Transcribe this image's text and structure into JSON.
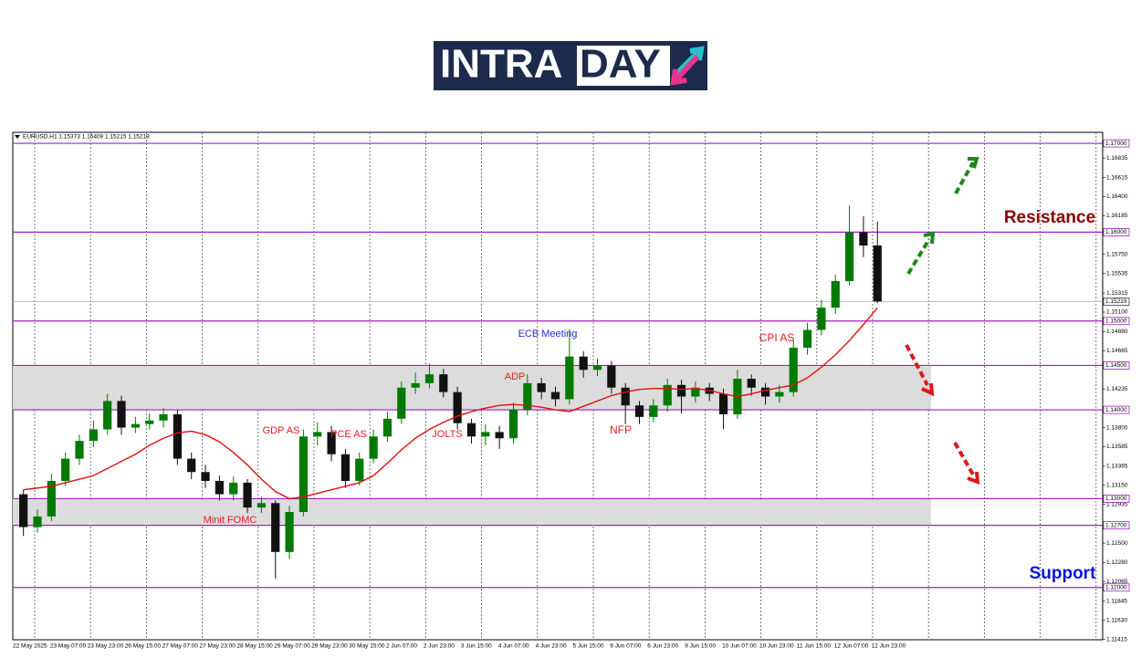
{
  "logo": {
    "part1": "INTRA",
    "part2": "DAY"
  },
  "chart_data": {
    "type": "candlestick",
    "title": "EURUSD,H1  1.15373 1.15409 1.15215 1.15219",
    "ylim": [
      1.11412,
      1.17124
    ],
    "yticks": [
      {
        "value": 1.16835,
        "label": "1.16835"
      },
      {
        "value": 1.16615,
        "label": "1.16615"
      },
      {
        "value": 1.164,
        "label": "1.16400"
      },
      {
        "value": 1.16185,
        "label": "1.16185"
      },
      {
        "value": 1.1575,
        "label": "1.15750"
      },
      {
        "value": 1.15535,
        "label": "1.15535"
      },
      {
        "value": 1.15315,
        "label": "1.15315"
      },
      {
        "value": 1.151,
        "label": "1.15100"
      },
      {
        "value": 1.1488,
        "label": "1.14880"
      },
      {
        "value": 1.14665,
        "label": "1.14665"
      },
      {
        "value": 1.14235,
        "label": "1.14235"
      },
      {
        "value": 1.138,
        "label": "1.13800"
      },
      {
        "value": 1.13585,
        "label": "1.13585"
      },
      {
        "value": 1.13365,
        "label": "1.13365"
      },
      {
        "value": 1.1315,
        "label": "1.13150"
      },
      {
        "value": 1.12935,
        "label": "1.12935"
      },
      {
        "value": 1.125,
        "label": "1.12500"
      },
      {
        "value": 1.1228,
        "label": "1.12280"
      },
      {
        "value": 1.12065,
        "label": "1.12065"
      },
      {
        "value": 1.11845,
        "label": "1.11845"
      },
      {
        "value": 1.1163,
        "label": "1.11630"
      },
      {
        "value": 1.11415,
        "label": "1.11415"
      }
    ],
    "levels": [
      {
        "value": 1.17,
        "label": "1.17000"
      },
      {
        "value": 1.16,
        "label": "1.16000"
      },
      {
        "value": 1.15,
        "label": "1.15000"
      },
      {
        "value": 1.145,
        "label": "1.14500"
      },
      {
        "value": 1.14,
        "label": "1.14000"
      },
      {
        "value": 1.13,
        "label": "1.13000"
      },
      {
        "value": 1.127,
        "label": "1.12700"
      },
      {
        "value": 1.12,
        "label": "1.12000"
      }
    ],
    "level_color": "#a020c0",
    "zones": [
      [
        1.14,
        1.145
      ],
      [
        1.127,
        1.13
      ]
    ],
    "zone_color": "#dcdcdc",
    "last_price": {
      "value": 1.15219,
      "label": "1.15219"
    },
    "xlabels": [
      "22 May 2025",
      "23 May 07:00",
      "23 May 23:00",
      "26 May 15:00",
      "27 May 07:00",
      "27 May 23:00",
      "28 May 15:00",
      "29 May 07:00",
      "29 May 23:00",
      "30 May 15:00",
      "2 Jun 07:00",
      "2 Jun 23:00",
      "3 Jun 15:00",
      "4 Jun 07:00",
      "4 Jun 23:00",
      "5 Jun 15:00",
      "6 Jun 07:00",
      "6 Jun 23:00",
      "9 Jun 15:00",
      "10 Jun 07:00",
      "10 Jun 23:00",
      "11 Jun 15:00",
      "12 Jun 07:00",
      "12 Jun 23:00"
    ],
    "up_color": "#007a00",
    "down_color": "#111111",
    "open": [
      1.1305,
      1.1268,
      1.128,
      1.132,
      1.1345,
      1.1365,
      1.1378,
      1.141,
      1.138,
      1.1384,
      1.1388,
      1.1395,
      1.1345,
      1.133,
      1.132,
      1.1305,
      1.1318,
      1.129,
      1.1295,
      1.124,
      1.1285,
      1.137,
      1.1375,
      1.135,
      1.132,
      1.1345,
      1.137,
      1.139,
      1.1425,
      1.143,
      1.144,
      1.142,
      1.1385,
      1.137,
      1.1375,
      1.1368,
      1.14,
      1.143,
      1.142,
      1.1412,
      1.146,
      1.1445,
      1.145,
      1.1425,
      1.1405,
      1.1392,
      1.1405,
      1.1428,
      1.1415,
      1.1425,
      1.1418,
      1.1395,
      1.1435,
      1.1425,
      1.1415,
      1.142,
      1.147,
      1.149,
      1.1515,
      1.1545,
      1.16,
      1.1585
    ],
    "high": [
      1.131,
      1.1288,
      1.1328,
      1.1352,
      1.1372,
      1.1388,
      1.1418,
      1.1416,
      1.1392,
      1.1396,
      1.1402,
      1.14,
      1.1352,
      1.1338,
      1.1326,
      1.1325,
      1.1322,
      1.1302,
      1.1298,
      1.1292,
      1.1378,
      1.1386,
      1.1382,
      1.1356,
      1.1352,
      1.1378,
      1.1398,
      1.1432,
      1.1442,
      1.1452,
      1.1446,
      1.1426,
      1.139,
      1.1384,
      1.1382,
      1.1408,
      1.144,
      1.1436,
      1.1426,
      1.1491,
      1.1466,
      1.1458,
      1.1455,
      1.143,
      1.141,
      1.1412,
      1.1435,
      1.1434,
      1.1432,
      1.143,
      1.1424,
      1.1445,
      1.144,
      1.143,
      1.1428,
      1.1478,
      1.1498,
      1.1524,
      1.1552,
      1.163,
      1.1618,
      1.1612
    ],
    "low": [
      1.1258,
      1.1262,
      1.1275,
      1.1314,
      1.1338,
      1.1358,
      1.1372,
      1.1372,
      1.1374,
      1.1378,
      1.138,
      1.1338,
      1.1322,
      1.1312,
      1.1298,
      1.1298,
      1.1284,
      1.1284,
      1.121,
      1.1232,
      1.128,
      1.136,
      1.1342,
      1.1312,
      1.1315,
      1.134,
      1.1364,
      1.1384,
      1.1418,
      1.1424,
      1.1414,
      1.1378,
      1.1362,
      1.136,
      1.1356,
      1.1362,
      1.1394,
      1.1412,
      1.1404,
      1.1406,
      1.1436,
      1.1438,
      1.1418,
      1.1384,
      1.1384,
      1.1386,
      1.1398,
      1.1396,
      1.1408,
      1.141,
      1.1378,
      1.139,
      1.1416,
      1.1406,
      1.1408,
      1.1415,
      1.1462,
      1.1484,
      1.1508,
      1.154,
      1.1572,
      1.152
    ],
    "close": [
      1.1268,
      1.128,
      1.132,
      1.1345,
      1.1365,
      1.1378,
      1.141,
      1.138,
      1.1384,
      1.1388,
      1.1395,
      1.1345,
      1.133,
      1.132,
      1.1305,
      1.1318,
      1.129,
      1.1295,
      1.124,
      1.1285,
      1.137,
      1.1375,
      1.135,
      1.132,
      1.1345,
      1.137,
      1.139,
      1.1425,
      1.143,
      1.144,
      1.142,
      1.1385,
      1.137,
      1.1375,
      1.1368,
      1.14,
      1.143,
      1.142,
      1.1412,
      1.146,
      1.1445,
      1.145,
      1.1425,
      1.1405,
      1.1392,
      1.1405,
      1.1428,
      1.1415,
      1.1425,
      1.1418,
      1.1395,
      1.1435,
      1.1425,
      1.1415,
      1.142,
      1.147,
      1.149,
      1.1515,
      1.1545,
      1.16,
      1.1585,
      1.1522
    ],
    "ma": {
      "color": "#e01010",
      "values": [
        1.131,
        1.1312,
        1.1314,
        1.1318,
        1.1322,
        1.1326,
        1.1334,
        1.1342,
        1.135,
        1.136,
        1.1368,
        1.1374,
        1.1376,
        1.1372,
        1.1364,
        1.1352,
        1.1338,
        1.1322,
        1.1308,
        1.13,
        1.1302,
        1.1306,
        1.131,
        1.1314,
        1.1318,
        1.1326,
        1.134,
        1.1355,
        1.1368,
        1.1378,
        1.1386,
        1.1393,
        1.1398,
        1.1402,
        1.1405,
        1.1406,
        1.1405,
        1.1403,
        1.14,
        1.1398,
        1.1404,
        1.141,
        1.1416,
        1.142,
        1.1423,
        1.1424,
        1.1424,
        1.1423,
        1.1424,
        1.1422,
        1.1418,
        1.1415,
        1.1418,
        1.1422,
        1.1425,
        1.1428,
        1.1436,
        1.1448,
        1.1462,
        1.1478,
        1.1496,
        1.1515
      ]
    },
    "annotations": [
      {
        "text": "Minit FOMC",
        "color": "#e02020"
      },
      {
        "text": "GDP AS",
        "color": "#e02020"
      },
      {
        "text": "PCE AS",
        "color": "#e02020"
      },
      {
        "text": "JOLTS",
        "color": "#e02020"
      },
      {
        "text": "ECB Meeting",
        "color": "#2030d0"
      },
      {
        "text": "ADP",
        "color": "#e02020"
      },
      {
        "text": "NFP",
        "color": "#e02020"
      },
      {
        "text": "CPI AS",
        "color": "#e02020"
      },
      {
        "text": "Resistance",
        "color": "#8b0000"
      },
      {
        "text": "Support",
        "color": "#1010e0"
      }
    ]
  }
}
